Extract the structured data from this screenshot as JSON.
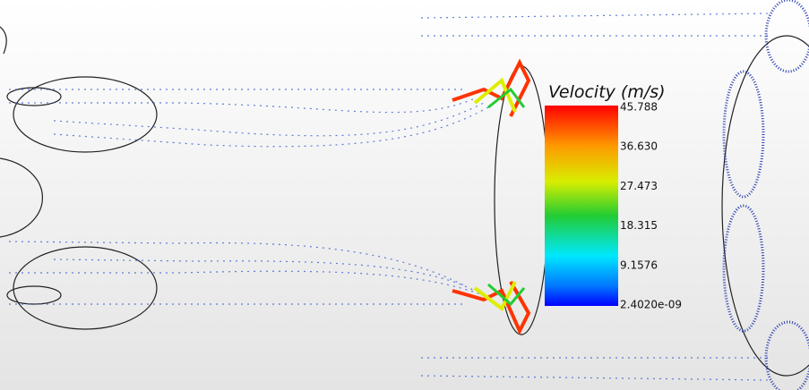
{
  "colorbar": {
    "title": "Velocity (m/s)",
    "ticks": [
      "45.788",
      "36.630",
      "27.473",
      "18.315",
      "9.1576",
      "2.4020e-09"
    ]
  }
}
